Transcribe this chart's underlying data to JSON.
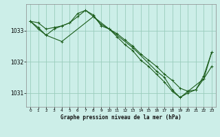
{
  "title": "Graphe pression niveau de la mer (hPa)",
  "background_color": "#cceee8",
  "grid_color": "#99ccbb",
  "line_color": "#1a5c1a",
  "ylim": [
    1030.55,
    1033.85
  ],
  "xlim": [
    -0.5,
    23.5
  ],
  "yticks": [
    1031,
    1032,
    1033
  ],
  "xticks": [
    0,
    1,
    2,
    3,
    4,
    5,
    6,
    7,
    8,
    9,
    10,
    11,
    12,
    13,
    14,
    15,
    16,
    17,
    18,
    19,
    20,
    21,
    22,
    23
  ],
  "series1": {
    "x": [
      0,
      1,
      2,
      3,
      4,
      5,
      6,
      7,
      8,
      9,
      10,
      11,
      12,
      13,
      14,
      15,
      16,
      17,
      18,
      19,
      20,
      21,
      22,
      23
    ],
    "y": [
      1033.3,
      1033.25,
      1033.05,
      1033.1,
      1033.15,
      1033.25,
      1033.55,
      1033.65,
      1033.5,
      1033.15,
      1033.05,
      1032.9,
      1032.7,
      1032.5,
      1032.25,
      1032.05,
      1031.85,
      1031.6,
      1031.4,
      1031.15,
      1031.05,
      1031.1,
      1031.45,
      1031.85
    ]
  },
  "series2": {
    "x": [
      0,
      1,
      2,
      3,
      4,
      5,
      6,
      7,
      8,
      9,
      10,
      11,
      12,
      13,
      14,
      15,
      16,
      17,
      18,
      19,
      20,
      21,
      22,
      23
    ],
    "y": [
      1033.3,
      1033.05,
      1032.85,
      1033.05,
      1033.15,
      1033.25,
      1033.45,
      1033.65,
      1033.45,
      1033.2,
      1033.05,
      1032.8,
      1032.55,
      1032.35,
      1032.05,
      1031.85,
      1031.6,
      1031.35,
      1031.05,
      1030.85,
      1031.0,
      1031.1,
      1031.55,
      1032.3
    ]
  },
  "series3": {
    "x": [
      0,
      1,
      2,
      4,
      8,
      10,
      13,
      16,
      17,
      18,
      19,
      20,
      22,
      23
    ],
    "y": [
      1033.3,
      1033.1,
      1032.85,
      1032.65,
      1033.45,
      1033.05,
      1032.45,
      1031.7,
      1031.5,
      1031.1,
      1030.85,
      1031.05,
      1031.45,
      1032.3
    ]
  }
}
